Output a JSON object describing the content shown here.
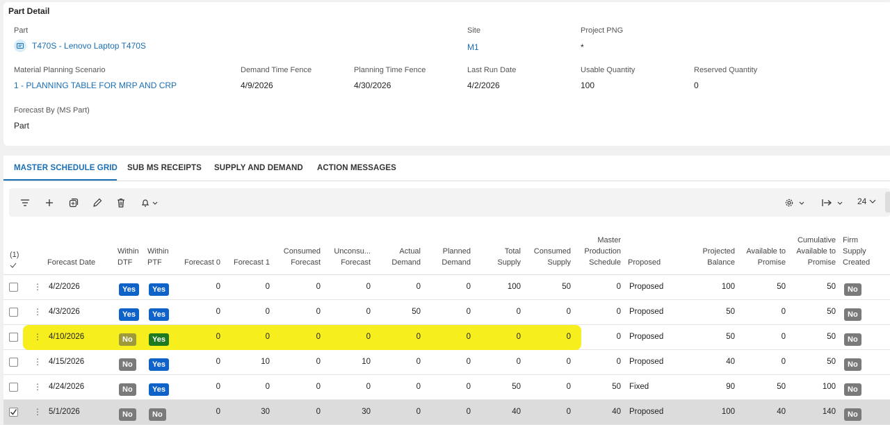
{
  "panel": {
    "title": "Part Detail",
    "part_label": "Part",
    "part_value": "T470S - Lenovo Laptop T470S",
    "site_label": "Site",
    "site_value": "M1",
    "project_label": "Project PNG",
    "project_value": "*",
    "scenario_label": "Material Planning Scenario",
    "scenario_value": "1 - PLANNING TABLE FOR MRP AND CRP",
    "dtf_label": "Demand Time Fence",
    "dtf_value": "4/9/2026",
    "ptf_label": "Planning Time Fence",
    "ptf_value": "4/30/2026",
    "lastrun_label": "Last Run Date",
    "lastrun_value": "4/2/2026",
    "usable_label": "Usable Quantity",
    "usable_value": "100",
    "reserved_label": "Reserved Quantity",
    "reserved_value": "0",
    "forecastby_label": "Forecast By (MS Part)",
    "forecastby_value": "Part"
  },
  "tabs": [
    "MASTER SCHEDULE GRID",
    "SUB MS RECEIPTS",
    "SUPPLY AND DEMAND",
    "ACTION MESSAGES"
  ],
  "toolbar": {
    "page_size": "24",
    "icons": [
      "filter-icon",
      "add-icon",
      "duplicate-icon",
      "edit-icon",
      "delete-icon",
      "bell-icon",
      "settings-icon",
      "export-icon"
    ]
  },
  "grid": {
    "selected_count": "(1)",
    "headers": {
      "forecast_date": "Forecast Date",
      "within_dtf_1": "Within",
      "within_dtf_2": "DTF",
      "within_ptf_1": "Within",
      "within_ptf_2": "PTF",
      "forecast0": "Forecast 0",
      "forecast1": "Forecast 1",
      "consumed_forecast_1": "Consumed",
      "consumed_forecast_2": "Forecast",
      "unconsumed_1": "Unconsu...",
      "unconsumed_2": "Forecast",
      "actual_1": "Actual",
      "actual_2": "Demand",
      "planned_1": "Planned",
      "planned_2": "Demand",
      "total_1": "Total",
      "total_2": "Supply",
      "consumed_supply_1": "Consumed",
      "consumed_supply_2": "Supply",
      "mps_1": "Master",
      "mps_2": "Production",
      "mps_3": "Schedule",
      "proposed": "Proposed",
      "projected_1": "Projected",
      "projected_2": "Balance",
      "atp_1": "Available to",
      "atp_2": "Promise",
      "catp_1": "Cumulative",
      "catp_2": "Available to",
      "catp_3": "Promise",
      "firm_1": "Firm",
      "firm_2": "Supply",
      "firm_3": "Created"
    },
    "rows": [
      {
        "date": "4/2/2026",
        "dtf": "Yes",
        "ptf": "Yes",
        "f0": "0",
        "f1": "0",
        "cf": "0",
        "uf": "0",
        "ad": "0",
        "pd": "0",
        "ts": "100",
        "cs": "50",
        "mps": "0",
        "status": "Proposed",
        "pb": "100",
        "atp": "50",
        "catp": "50",
        "firm": "No"
      },
      {
        "date": "4/3/2026",
        "dtf": "Yes",
        "ptf": "Yes",
        "f0": "0",
        "f1": "0",
        "cf": "0",
        "uf": "0",
        "ad": "50",
        "pd": "0",
        "ts": "0",
        "cs": "0",
        "mps": "0",
        "status": "Proposed",
        "pb": "50",
        "atp": "0",
        "catp": "50",
        "firm": "No"
      },
      {
        "date": "4/10/2026",
        "dtf": "No",
        "ptf": "Yes",
        "f0": "0",
        "f1": "0",
        "cf": "0",
        "uf": "0",
        "ad": "0",
        "pd": "0",
        "ts": "0",
        "cs": "0",
        "mps": "0",
        "status": "Proposed",
        "pb": "50",
        "atp": "0",
        "catp": "50",
        "firm": "No"
      },
      {
        "date": "4/15/2026",
        "dtf": "No",
        "ptf": "Yes",
        "f0": "0",
        "f1": "10",
        "cf": "0",
        "uf": "10",
        "ad": "0",
        "pd": "0",
        "ts": "0",
        "cs": "0",
        "mps": "0",
        "status": "Proposed",
        "pb": "40",
        "atp": "0",
        "catp": "50",
        "firm": "No"
      },
      {
        "date": "4/24/2026",
        "dtf": "No",
        "ptf": "Yes",
        "f0": "0",
        "f1": "0",
        "cf": "0",
        "uf": "0",
        "ad": "0",
        "pd": "0",
        "ts": "50",
        "cs": "0",
        "mps": "50",
        "status": "Fixed",
        "pb": "90",
        "atp": "50",
        "catp": "100",
        "firm": "No"
      },
      {
        "date": "5/1/2026",
        "dtf": "No",
        "ptf": "No",
        "f0": "0",
        "f1": "30",
        "cf": "0",
        "uf": "30",
        "ad": "0",
        "pd": "0",
        "ts": "40",
        "cs": "0",
        "mps": "40",
        "status": "Proposed",
        "pb": "100",
        "atp": "40",
        "catp": "140",
        "firm": "No"
      }
    ]
  }
}
